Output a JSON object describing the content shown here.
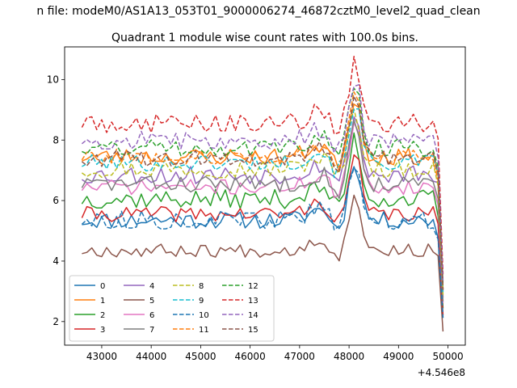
{
  "figure": {
    "suptitle": "n file: modeM0/AS1A13_053T01_9000006274_46872cztM0_level2_quad_clean"
  },
  "chart_data": {
    "type": "line",
    "title": "Quadrant 1 module wise count rates with 100.0s bins.",
    "xlabel": "",
    "ylabel": "",
    "x_offset_label": "+4.546e8",
    "xlim": [
      42250,
      50350
    ],
    "ylim": [
      1.22,
      11.08
    ],
    "xticks": [
      43000,
      44000,
      45000,
      46000,
      47000,
      48000,
      49000,
      50000
    ],
    "xtick_labels": [
      "43000",
      "44000",
      "45000",
      "46000",
      "47000",
      "48000",
      "49000",
      "50000"
    ],
    "yticks": [
      2,
      4,
      6,
      8,
      10
    ],
    "ytick_labels": [
      "2",
      "4",
      "6",
      "8",
      "10"
    ],
    "grid": false,
    "legend": {
      "placement": "lower-left",
      "columns": 4
    },
    "x_range": {
      "start": 42600,
      "step": 100,
      "count": 74
    },
    "series": [
      {
        "name": "0",
        "color": "#1f77b4",
        "dash": "solid",
        "level": 5.35,
        "amp": 0.28,
        "seed": 11
      },
      {
        "name": "1",
        "color": "#ff7f0e",
        "dash": "solid",
        "level": 7.45,
        "amp": 0.28,
        "seed": 23
      },
      {
        "name": "2",
        "color": "#2ca02c",
        "dash": "solid",
        "level": 6.05,
        "amp": 0.32,
        "seed": 37
      },
      {
        "name": "3",
        "color": "#d62728",
        "dash": "solid",
        "level": 5.55,
        "amp": 0.25,
        "seed": 41
      },
      {
        "name": "4",
        "color": "#9467bd",
        "dash": "solid",
        "level": 6.85,
        "amp": 0.32,
        "seed": 53
      },
      {
        "name": "5",
        "color": "#8c564b",
        "dash": "solid",
        "level": 4.35,
        "amp": 0.22,
        "seed": 67
      },
      {
        "name": "6",
        "color": "#e377c2",
        "dash": "solid",
        "level": 6.45,
        "amp": 0.25,
        "seed": 71
      },
      {
        "name": "7",
        "color": "#7f7f7f",
        "dash": "solid",
        "level": 6.55,
        "amp": 0.28,
        "seed": 83
      },
      {
        "name": "8",
        "color": "#bcbd22",
        "dash": "dashed",
        "level": 7.05,
        "amp": 0.3,
        "seed": 97
      },
      {
        "name": "9",
        "color": "#17becf",
        "dash": "dashed",
        "level": 7.25,
        "amp": 0.28,
        "seed": 101
      },
      {
        "name": "10",
        "color": "#1f77b4",
        "dash": "dashed",
        "level": 5.35,
        "amp": 0.3,
        "seed": 113
      },
      {
        "name": "11",
        "color": "#ff7f0e",
        "dash": "dashed",
        "level": 7.45,
        "amp": 0.25,
        "seed": 127
      },
      {
        "name": "12",
        "color": "#2ca02c",
        "dash": "dashed",
        "level": 7.75,
        "amp": 0.3,
        "seed": 131
      },
      {
        "name": "13",
        "color": "#d62728",
        "dash": "dashed",
        "level": 8.55,
        "amp": 0.32,
        "seed": 149
      },
      {
        "name": "14",
        "color": "#9467bd",
        "dash": "dashed",
        "level": 8.0,
        "amp": 0.3,
        "seed": 157
      },
      {
        "name": "15",
        "color": "#8c564b",
        "dash": "dashed",
        "level": 7.4,
        "amp": 0.28,
        "seed": 163
      }
    ]
  }
}
